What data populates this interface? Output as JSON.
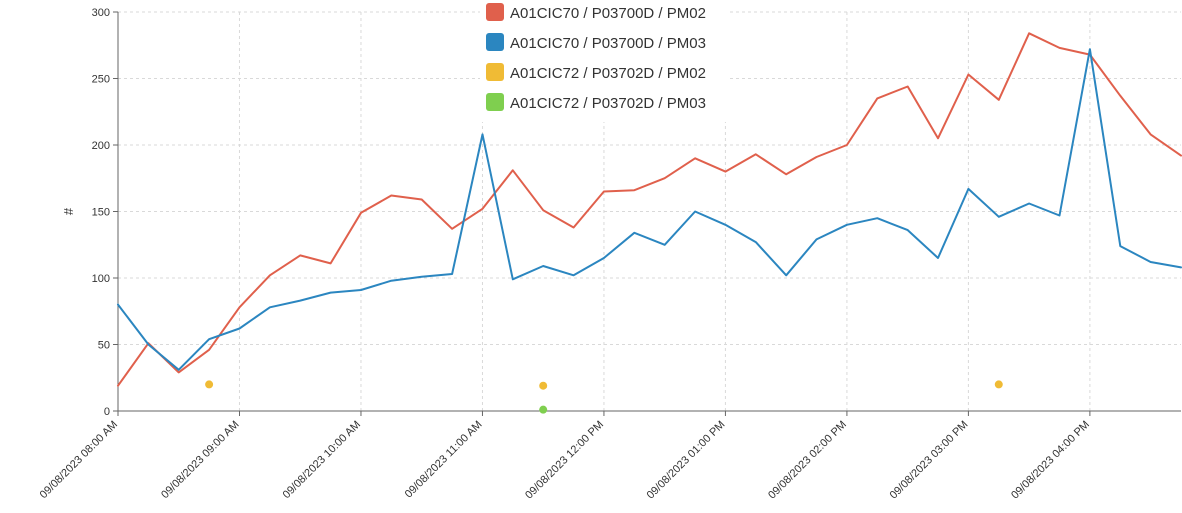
{
  "chart_data": {
    "type": "line",
    "title": "",
    "xlabel": "",
    "ylabel": "#",
    "ylim": [
      0,
      300
    ],
    "yticks": [
      0,
      50,
      100,
      150,
      200,
      250,
      300
    ],
    "xlim": [
      "09/08/2023 08:00 AM",
      "09/08/2023 04:45 PM"
    ],
    "xticks": [
      "09/08/2023 08:00 AM",
      "09/08/2023 09:00 AM",
      "09/08/2023 10:00 AM",
      "09/08/2023 11:00 AM",
      "09/08/2023 12:00 PM",
      "09/08/2023 01:00 PM",
      "09/08/2023 02:00 PM",
      "09/08/2023 03:00 PM",
      "09/08/2023 04:00 PM"
    ],
    "grid": true,
    "legend_position": "top-center",
    "x": [
      "09/08/2023 08:00 AM",
      "09/08/2023 08:15 AM",
      "09/08/2023 08:30 AM",
      "09/08/2023 08:45 AM",
      "09/08/2023 09:00 AM",
      "09/08/2023 09:15 AM",
      "09/08/2023 09:30 AM",
      "09/08/2023 09:45 AM",
      "09/08/2023 10:00 AM",
      "09/08/2023 10:15 AM",
      "09/08/2023 10:30 AM",
      "09/08/2023 10:45 AM",
      "09/08/2023 11:00 AM",
      "09/08/2023 11:15 AM",
      "09/08/2023 11:30 AM",
      "09/08/2023 11:45 AM",
      "09/08/2023 12:00 PM",
      "09/08/2023 12:15 PM",
      "09/08/2023 12:30 PM",
      "09/08/2023 12:45 PM",
      "09/08/2023 01:00 PM",
      "09/08/2023 01:15 PM",
      "09/08/2023 01:30 PM",
      "09/08/2023 01:45 PM",
      "09/08/2023 02:00 PM",
      "09/08/2023 02:15 PM",
      "09/08/2023 02:30 PM",
      "09/08/2023 02:45 PM",
      "09/08/2023 03:00 PM",
      "09/08/2023 03:15 PM",
      "09/08/2023 03:30 PM",
      "09/08/2023 03:45 PM",
      "09/08/2023 04:00 PM",
      "09/08/2023 04:15 PM",
      "09/08/2023 04:30 PM",
      "09/08/2023 04:45 PM"
    ],
    "series": [
      {
        "name": "A01CIC70 / P03700D / PM02",
        "color": "#e0604c",
        "style": "line",
        "values": [
          19,
          51,
          29,
          46,
          78,
          102,
          117,
          111,
          149,
          162,
          159,
          137,
          152,
          181,
          151,
          138,
          165,
          166,
          175,
          190,
          180,
          193,
          178,
          191,
          200,
          235,
          244,
          205,
          253,
          234,
          284,
          273,
          268,
          237,
          208,
          192
        ]
      },
      {
        "name": "A01CIC70 / P03700D / PM03",
        "color": "#2b86c0",
        "style": "line",
        "values": [
          80,
          50,
          31,
          54,
          62,
          78,
          83,
          89,
          91,
          98,
          101,
          103,
          208,
          99,
          109,
          102,
          115,
          134,
          125,
          150,
          140,
          127,
          102,
          129,
          140,
          145,
          136,
          115,
          167,
          146,
          156,
          147,
          272,
          124,
          112,
          108
        ]
      },
      {
        "name": "A01CIC72 / P03702D / PM02",
        "color": "#f0bb35",
        "style": "points",
        "points": [
          {
            "x": "09/08/2023 08:45 AM",
            "y": 20
          },
          {
            "x": "09/08/2023 11:30 AM",
            "y": 19
          },
          {
            "x": "09/08/2023 03:15 PM",
            "y": 20
          }
        ]
      },
      {
        "name": "A01CIC72 / P03702D / PM03",
        "color": "#7fcf4f",
        "style": "points",
        "points": [
          {
            "x": "09/08/2023 11:30 AM",
            "y": 1
          }
        ]
      }
    ]
  }
}
